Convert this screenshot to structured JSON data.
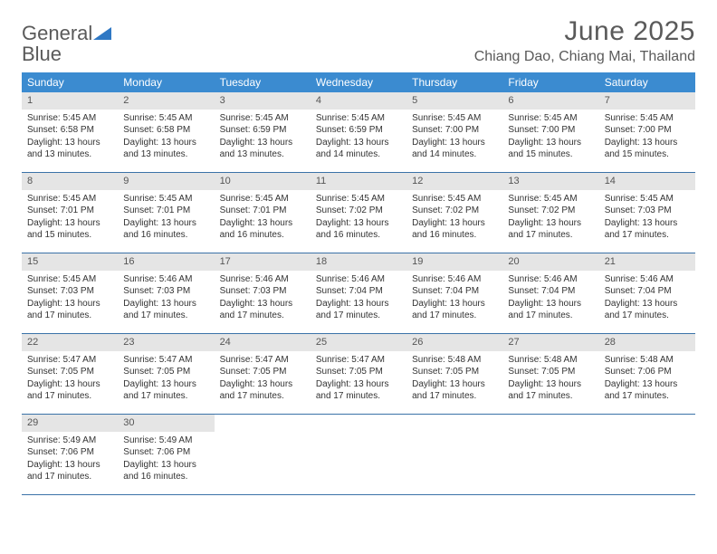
{
  "brand": {
    "word1": "General",
    "word2": "Blue"
  },
  "title": "June 2025",
  "location": "Chiang Dao, Chiang Mai, Thailand",
  "colors": {
    "header_bg": "#3b8bd0",
    "header_text": "#ffffff",
    "daynum_bg": "#e5e5e5",
    "border": "#3b72a8",
    "brand_gray": "#5a5a5a",
    "brand_blue": "#2f78c4",
    "text": "#333333",
    "background": "#ffffff"
  },
  "typography": {
    "title_fontsize": 30,
    "location_fontsize": 16,
    "weekday_fontsize": 12,
    "daynum_fontsize": 11,
    "body_fontsize": 10
  },
  "weekdays": [
    "Sunday",
    "Monday",
    "Tuesday",
    "Wednesday",
    "Thursday",
    "Friday",
    "Saturday"
  ],
  "weeks": [
    [
      {
        "n": "1",
        "sr": "5:45 AM",
        "ss": "6:58 PM",
        "dl": "13 hours and 13 minutes."
      },
      {
        "n": "2",
        "sr": "5:45 AM",
        "ss": "6:58 PM",
        "dl": "13 hours and 13 minutes."
      },
      {
        "n": "3",
        "sr": "5:45 AM",
        "ss": "6:59 PM",
        "dl": "13 hours and 13 minutes."
      },
      {
        "n": "4",
        "sr": "5:45 AM",
        "ss": "6:59 PM",
        "dl": "13 hours and 14 minutes."
      },
      {
        "n": "5",
        "sr": "5:45 AM",
        "ss": "7:00 PM",
        "dl": "13 hours and 14 minutes."
      },
      {
        "n": "6",
        "sr": "5:45 AM",
        "ss": "7:00 PM",
        "dl": "13 hours and 15 minutes."
      },
      {
        "n": "7",
        "sr": "5:45 AM",
        "ss": "7:00 PM",
        "dl": "13 hours and 15 minutes."
      }
    ],
    [
      {
        "n": "8",
        "sr": "5:45 AM",
        "ss": "7:01 PM",
        "dl": "13 hours and 15 minutes."
      },
      {
        "n": "9",
        "sr": "5:45 AM",
        "ss": "7:01 PM",
        "dl": "13 hours and 16 minutes."
      },
      {
        "n": "10",
        "sr": "5:45 AM",
        "ss": "7:01 PM",
        "dl": "13 hours and 16 minutes."
      },
      {
        "n": "11",
        "sr": "5:45 AM",
        "ss": "7:02 PM",
        "dl": "13 hours and 16 minutes."
      },
      {
        "n": "12",
        "sr": "5:45 AM",
        "ss": "7:02 PM",
        "dl": "13 hours and 16 minutes."
      },
      {
        "n": "13",
        "sr": "5:45 AM",
        "ss": "7:02 PM",
        "dl": "13 hours and 17 minutes."
      },
      {
        "n": "14",
        "sr": "5:45 AM",
        "ss": "7:03 PM",
        "dl": "13 hours and 17 minutes."
      }
    ],
    [
      {
        "n": "15",
        "sr": "5:45 AM",
        "ss": "7:03 PM",
        "dl": "13 hours and 17 minutes."
      },
      {
        "n": "16",
        "sr": "5:46 AM",
        "ss": "7:03 PM",
        "dl": "13 hours and 17 minutes."
      },
      {
        "n": "17",
        "sr": "5:46 AM",
        "ss": "7:03 PM",
        "dl": "13 hours and 17 minutes."
      },
      {
        "n": "18",
        "sr": "5:46 AM",
        "ss": "7:04 PM",
        "dl": "13 hours and 17 minutes."
      },
      {
        "n": "19",
        "sr": "5:46 AM",
        "ss": "7:04 PM",
        "dl": "13 hours and 17 minutes."
      },
      {
        "n": "20",
        "sr": "5:46 AM",
        "ss": "7:04 PM",
        "dl": "13 hours and 17 minutes."
      },
      {
        "n": "21",
        "sr": "5:46 AM",
        "ss": "7:04 PM",
        "dl": "13 hours and 17 minutes."
      }
    ],
    [
      {
        "n": "22",
        "sr": "5:47 AM",
        "ss": "7:05 PM",
        "dl": "13 hours and 17 minutes."
      },
      {
        "n": "23",
        "sr": "5:47 AM",
        "ss": "7:05 PM",
        "dl": "13 hours and 17 minutes."
      },
      {
        "n": "24",
        "sr": "5:47 AM",
        "ss": "7:05 PM",
        "dl": "13 hours and 17 minutes."
      },
      {
        "n": "25",
        "sr": "5:47 AM",
        "ss": "7:05 PM",
        "dl": "13 hours and 17 minutes."
      },
      {
        "n": "26",
        "sr": "5:48 AM",
        "ss": "7:05 PM",
        "dl": "13 hours and 17 minutes."
      },
      {
        "n": "27",
        "sr": "5:48 AM",
        "ss": "7:05 PM",
        "dl": "13 hours and 17 minutes."
      },
      {
        "n": "28",
        "sr": "5:48 AM",
        "ss": "7:06 PM",
        "dl": "13 hours and 17 minutes."
      }
    ],
    [
      {
        "n": "29",
        "sr": "5:49 AM",
        "ss": "7:06 PM",
        "dl": "13 hours and 17 minutes."
      },
      {
        "n": "30",
        "sr": "5:49 AM",
        "ss": "7:06 PM",
        "dl": "13 hours and 16 minutes."
      },
      null,
      null,
      null,
      null,
      null
    ]
  ],
  "labels": {
    "sunrise": "Sunrise: ",
    "sunset": "Sunset: ",
    "daylight": "Daylight: "
  }
}
